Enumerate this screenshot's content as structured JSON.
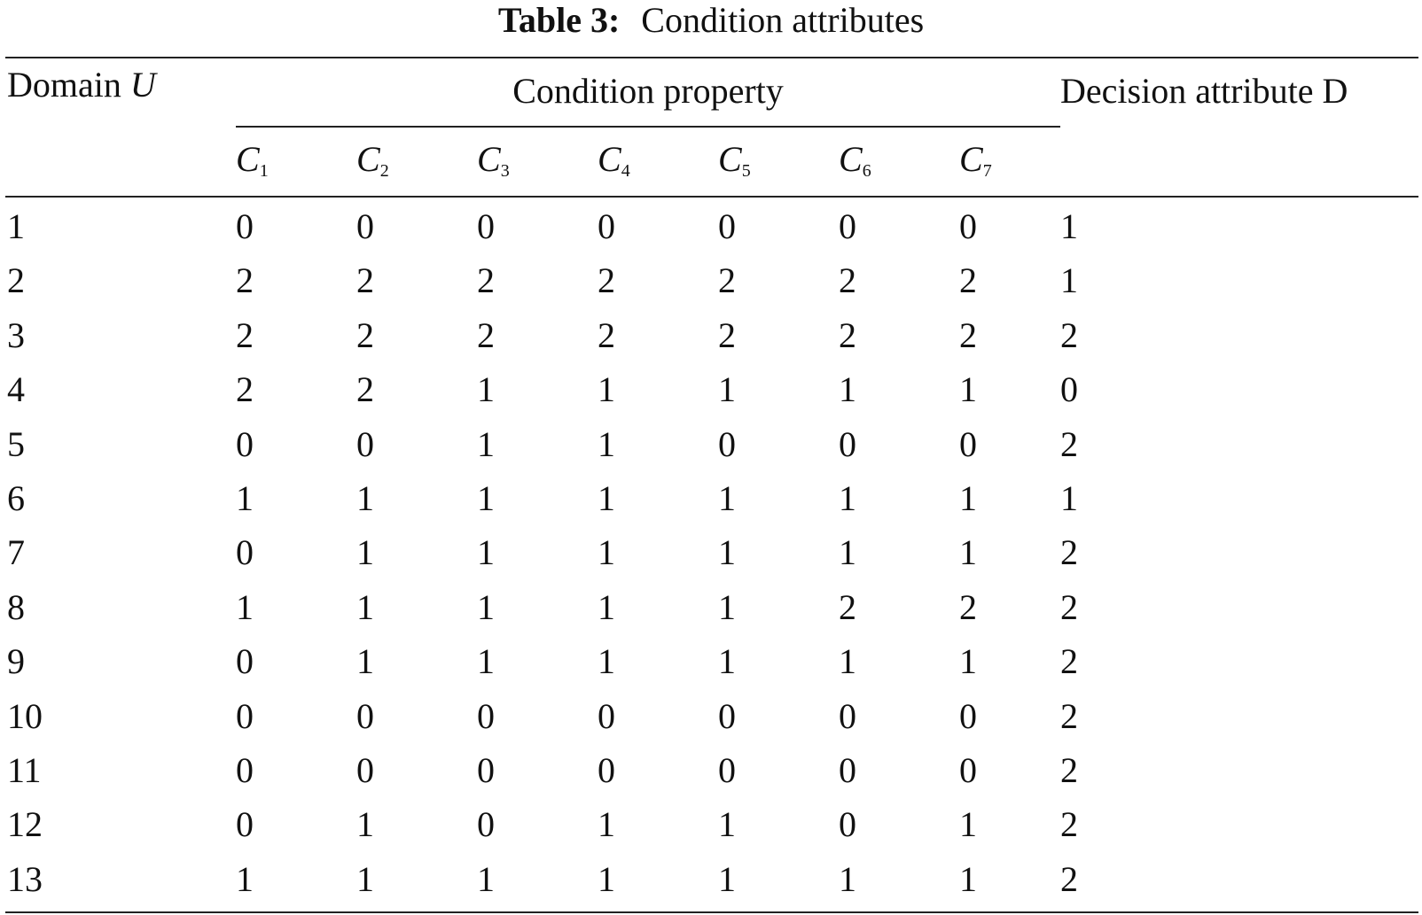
{
  "table": {
    "caption_label": "Table 3:",
    "caption_text": "Condition attributes",
    "header": {
      "domain_label": "Domain",
      "domain_var": "U",
      "condition_group": "Condition property",
      "decision": "Decision attribute D",
      "condition_vars": [
        {
          "letter": "C",
          "sub": "1"
        },
        {
          "letter": "C",
          "sub": "2"
        },
        {
          "letter": "C",
          "sub": "3"
        },
        {
          "letter": "C",
          "sub": "4"
        },
        {
          "letter": "C",
          "sub": "5"
        },
        {
          "letter": "C",
          "sub": "6"
        },
        {
          "letter": "C",
          "sub": "7"
        }
      ]
    },
    "rows": [
      {
        "domain": "1",
        "conditions": [
          "0",
          "0",
          "0",
          "0",
          "0",
          "0",
          "0"
        ],
        "decision": "1"
      },
      {
        "domain": "2",
        "conditions": [
          "2",
          "2",
          "2",
          "2",
          "2",
          "2",
          "2"
        ],
        "decision": "1"
      },
      {
        "domain": "3",
        "conditions": [
          "2",
          "2",
          "2",
          "2",
          "2",
          "2",
          "2"
        ],
        "decision": "2"
      },
      {
        "domain": "4",
        "conditions": [
          "2",
          "2",
          "1",
          "1",
          "1",
          "1",
          "1"
        ],
        "decision": "0"
      },
      {
        "domain": "5",
        "conditions": [
          "0",
          "0",
          "1",
          "1",
          "0",
          "0",
          "0"
        ],
        "decision": "2"
      },
      {
        "domain": "6",
        "conditions": [
          "1",
          "1",
          "1",
          "1",
          "1",
          "1",
          "1"
        ],
        "decision": "1"
      },
      {
        "domain": "7",
        "conditions": [
          "0",
          "1",
          "1",
          "1",
          "1",
          "1",
          "1"
        ],
        "decision": "2"
      },
      {
        "domain": "8",
        "conditions": [
          "1",
          "1",
          "1",
          "1",
          "1",
          "2",
          "2"
        ],
        "decision": "2"
      },
      {
        "domain": "9",
        "conditions": [
          "0",
          "1",
          "1",
          "1",
          "1",
          "1",
          "1"
        ],
        "decision": "2"
      },
      {
        "domain": "10",
        "conditions": [
          "0",
          "0",
          "0",
          "0",
          "0",
          "0",
          "0"
        ],
        "decision": "2"
      },
      {
        "domain": "11",
        "conditions": [
          "0",
          "0",
          "0",
          "0",
          "0",
          "0",
          "0"
        ],
        "decision": "2"
      },
      {
        "domain": "12",
        "conditions": [
          "0",
          "1",
          "0",
          "1",
          "1",
          "0",
          "1"
        ],
        "decision": "2"
      },
      {
        "domain": "13",
        "conditions": [
          "1",
          "1",
          "1",
          "1",
          "1",
          "1",
          "1"
        ],
        "decision": "2"
      }
    ]
  }
}
